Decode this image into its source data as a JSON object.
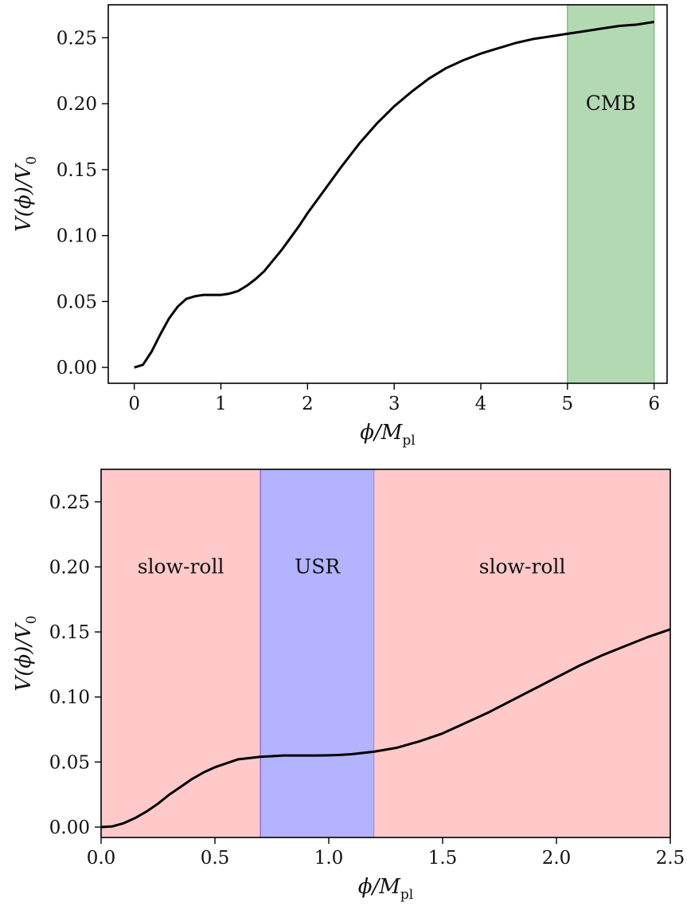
{
  "chart_data": [
    {
      "type": "line",
      "title": "",
      "xlabel_parts": {
        "main": "ϕ/M",
        "sub": "pl"
      },
      "ylabel": "V(ϕ)/V",
      "ylabel_sub": "0",
      "xlim": [
        -0.3,
        6.15
      ],
      "ylim": [
        -0.012,
        0.275
      ],
      "xticks": [
        0,
        1,
        2,
        3,
        4,
        5,
        6
      ],
      "xtick_labels": [
        "0",
        "1",
        "2",
        "3",
        "4",
        "5",
        "6"
      ],
      "yticks": [
        0.0,
        0.05,
        0.1,
        0.15,
        0.2,
        0.25
      ],
      "ytick_labels": [
        "0.00",
        "0.05",
        "0.10",
        "0.15",
        "0.20",
        "0.25"
      ],
      "bands": [
        {
          "x0": 5.0,
          "x1": 6.0,
          "label": "CMB",
          "color": "#b3d9b3",
          "edge": "#7fbf7f"
        }
      ],
      "series": [
        {
          "color": "#000000",
          "points": [
            [
              0.0,
              0.0
            ],
            [
              0.1,
              0.002
            ],
            [
              0.2,
              0.012
            ],
            [
              0.3,
              0.025
            ],
            [
              0.4,
              0.037
            ],
            [
              0.5,
              0.046
            ],
            [
              0.6,
              0.052
            ],
            [
              0.7,
              0.054
            ],
            [
              0.8,
              0.055
            ],
            [
              0.9,
              0.055
            ],
            [
              1.0,
              0.055
            ],
            [
              1.1,
              0.056
            ],
            [
              1.2,
              0.058
            ],
            [
              1.3,
              0.062
            ],
            [
              1.4,
              0.067
            ],
            [
              1.5,
              0.073
            ],
            [
              1.6,
              0.081
            ],
            [
              1.7,
              0.089
            ],
            [
              1.8,
              0.098
            ],
            [
              1.9,
              0.107
            ],
            [
              2.0,
              0.117
            ],
            [
              2.2,
              0.135
            ],
            [
              2.4,
              0.153
            ],
            [
              2.6,
              0.17
            ],
            [
              2.8,
              0.185
            ],
            [
              3.0,
              0.198
            ],
            [
              3.2,
              0.209
            ],
            [
              3.4,
              0.219
            ],
            [
              3.6,
              0.227
            ],
            [
              3.8,
              0.233
            ],
            [
              4.0,
              0.238
            ],
            [
              4.2,
              0.242
            ],
            [
              4.4,
              0.246
            ],
            [
              4.6,
              0.249
            ],
            [
              4.8,
              0.251
            ],
            [
              5.0,
              0.253
            ],
            [
              5.2,
              0.255
            ],
            [
              5.4,
              0.257
            ],
            [
              5.6,
              0.259
            ],
            [
              5.8,
              0.26
            ],
            [
              6.0,
              0.262
            ]
          ]
        }
      ]
    },
    {
      "type": "line",
      "title": "",
      "xlabel_parts": {
        "main": "ϕ/M",
        "sub": "pl"
      },
      "ylabel": "V(ϕ)/V",
      "ylabel_sub": "0",
      "xlim": [
        0.0,
        2.5
      ],
      "ylim": [
        -0.008,
        0.275
      ],
      "xticks": [
        0.0,
        0.5,
        1.0,
        1.5,
        2.0,
        2.5
      ],
      "xtick_labels": [
        "0.0",
        "0.5",
        "1.0",
        "1.5",
        "2.0",
        "2.5"
      ],
      "yticks": [
        0.0,
        0.05,
        0.1,
        0.15,
        0.2,
        0.25
      ],
      "ytick_labels": [
        "0.00",
        "0.05",
        "0.10",
        "0.15",
        "0.20",
        "0.25"
      ],
      "bands": [
        {
          "x0": 0.0,
          "x1": 0.7,
          "label": "slow-roll",
          "color": "#ffc9c9",
          "edge": "#ffc9c9"
        },
        {
          "x0": 0.7,
          "x1": 1.2,
          "label": "USR",
          "color": "#b3b3ff",
          "edge": "#9a6ad4"
        },
        {
          "x0": 1.2,
          "x1": 2.5,
          "label": "slow-roll",
          "color": "#ffc9c9",
          "edge": "#ffc9c9"
        }
      ],
      "series": [
        {
          "color": "#000000",
          "points": [
            [
              0.0,
              0.0
            ],
            [
              0.05,
              0.0005
            ],
            [
              0.1,
              0.003
            ],
            [
              0.15,
              0.007
            ],
            [
              0.2,
              0.012
            ],
            [
              0.25,
              0.018
            ],
            [
              0.3,
              0.025
            ],
            [
              0.35,
              0.031
            ],
            [
              0.4,
              0.037
            ],
            [
              0.45,
              0.042
            ],
            [
              0.5,
              0.046
            ],
            [
              0.55,
              0.049
            ],
            [
              0.6,
              0.052
            ],
            [
              0.65,
              0.053
            ],
            [
              0.7,
              0.054
            ],
            [
              0.75,
              0.0545
            ],
            [
              0.8,
              0.055
            ],
            [
              0.85,
              0.055
            ],
            [
              0.9,
              0.055
            ],
            [
              0.95,
              0.055
            ],
            [
              1.0,
              0.0552
            ],
            [
              1.05,
              0.0555
            ],
            [
              1.1,
              0.056
            ],
            [
              1.15,
              0.057
            ],
            [
              1.2,
              0.058
            ],
            [
              1.3,
              0.061
            ],
            [
              1.4,
              0.066
            ],
            [
              1.5,
              0.072
            ],
            [
              1.6,
              0.08
            ],
            [
              1.7,
              0.088
            ],
            [
              1.8,
              0.097
            ],
            [
              1.9,
              0.106
            ],
            [
              2.0,
              0.115
            ],
            [
              2.1,
              0.124
            ],
            [
              2.2,
              0.132
            ],
            [
              2.3,
              0.139
            ],
            [
              2.4,
              0.146
            ],
            [
              2.5,
              0.152
            ]
          ]
        }
      ]
    }
  ]
}
